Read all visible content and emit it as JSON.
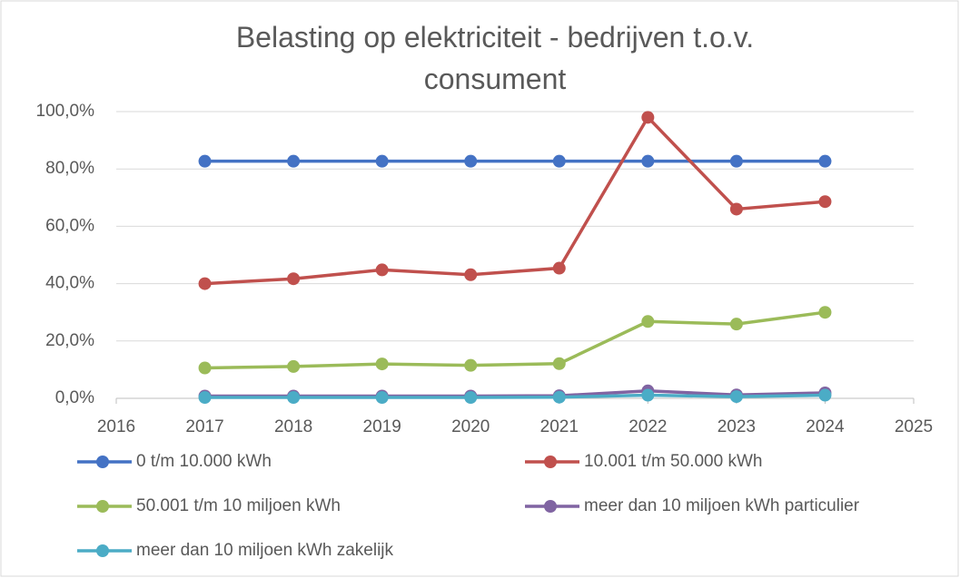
{
  "chart_data": {
    "type": "line",
    "title": "Belasting op elektriciteit - bedrijven t.o.v. consument",
    "x": [
      2017,
      2018,
      2019,
      2020,
      2021,
      2022,
      2023,
      2024
    ],
    "series": [
      {
        "name": "0 t/m 10.000 kWh",
        "color": "#4472c4",
        "values": [
          82.7,
          82.7,
          82.7,
          82.7,
          82.7,
          82.7,
          82.7,
          82.7
        ]
      },
      {
        "name": "10.001 t/m 50.000 kWh",
        "color": "#c0504d",
        "values": [
          40.0,
          41.7,
          44.8,
          43.1,
          45.4,
          98.0,
          66.0,
          68.6
        ]
      },
      {
        "name": "50.001 t/m 10 miljoen kWh",
        "color": "#9bbb59",
        "values": [
          10.6,
          11.1,
          12.0,
          11.5,
          12.1,
          26.8,
          25.9,
          30.0
        ]
      },
      {
        "name": "meer dan 10 miljoen kWh particulier",
        "color": "#8064a2",
        "values": [
          0.8,
          0.8,
          0.8,
          0.8,
          0.9,
          2.6,
          1.2,
          1.9
        ]
      },
      {
        "name": "meer dan 10 miljoen kWh zakelijk",
        "color": "#4bacc6",
        "values": [
          0.3,
          0.3,
          0.3,
          0.3,
          0.4,
          1.1,
          0.6,
          1.1
        ]
      }
    ],
    "xlim": [
      2016,
      2025
    ],
    "xticks": [
      2016,
      2017,
      2018,
      2019,
      2020,
      2021,
      2022,
      2023,
      2024,
      2025
    ],
    "ylim": [
      0,
      100
    ],
    "yticks": [
      {
        "value": 0,
        "label": "0,0%"
      },
      {
        "value": 20,
        "label": "20,0%"
      },
      {
        "value": 40,
        "label": "40,0%"
      },
      {
        "value": 60,
        "label": "60,0%"
      },
      {
        "value": 80,
        "label": "80,0%"
      },
      {
        "value": 100,
        "label": "100,0%"
      }
    ],
    "grid": true
  }
}
